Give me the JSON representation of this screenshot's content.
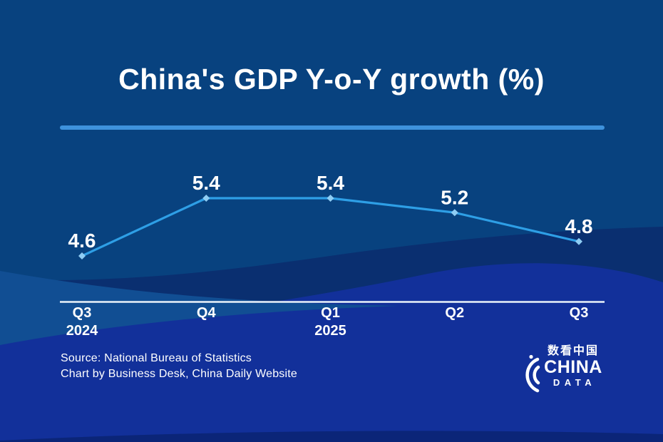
{
  "title": "China's GDP Y-o-Y growth (%)",
  "chart_data": {
    "type": "line",
    "series_name": "China GDP year-on-year growth (%)",
    "categories": [
      "Q3",
      "Q4",
      "Q1",
      "Q2",
      "Q3"
    ],
    "category_sublabels": [
      "2024",
      "",
      "2025",
      "",
      ""
    ],
    "values": [
      4.6,
      5.4,
      5.4,
      5.2,
      4.8
    ],
    "data_labels": [
      "4.6",
      "5.4",
      "5.4",
      "5.2",
      "4.8"
    ],
    "ylim": [
      4.0,
      6.0
    ],
    "grid": false,
    "legend": "none",
    "x_axis_line": true
  },
  "footer": {
    "source_line1": "Source: National Bureau of Statistics",
    "source_line2": "Chart by Business Desk, China Daily Website"
  },
  "logo": {
    "chinese_text": "数看中国",
    "name_line1": "CHINA",
    "name_line2": "DATA"
  },
  "colors": {
    "background": "#08427F",
    "wave_dark_navy": "#0A2F70",
    "wave_royal_blue": "#12309A",
    "wave_light_steel": "#114E93",
    "wave_bottom_dark": "#0B2578",
    "divider": "#3E92DC",
    "line": "#2E9FE6",
    "marker": "#8FCDF4",
    "axis": "#EAF2FA",
    "text": "#FFFFFF"
  }
}
